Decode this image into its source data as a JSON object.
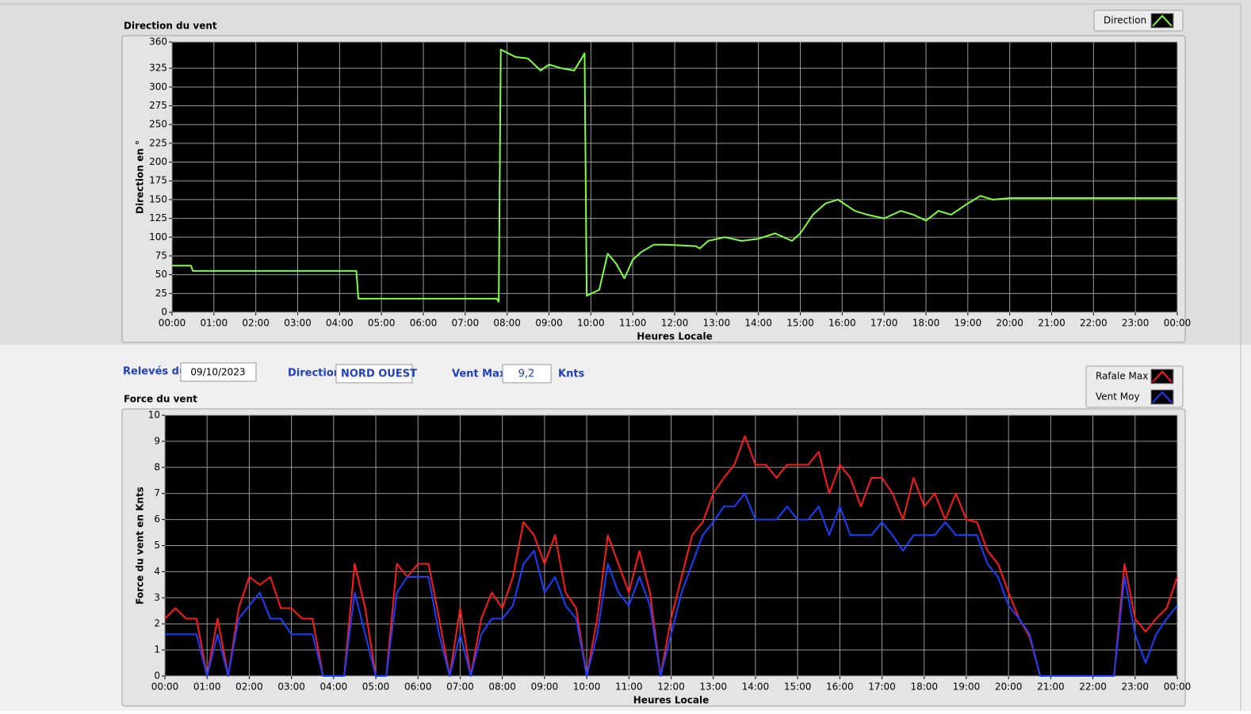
{
  "chart_data": [
    {
      "type": "line",
      "title": "Direction du vent",
      "x_label": "Heures Locale",
      "y_label": "Direction en °",
      "x": [
        0,
        0.45,
        0.5,
        4.4,
        4.45,
        7.75,
        7.8,
        7.85,
        8.2,
        8.5,
        8.8,
        9.0,
        9.3,
        9.6,
        9.8,
        9.85,
        9.9,
        10.2,
        10.4,
        10.6,
        10.8,
        11.0,
        11.2,
        11.5,
        11.8,
        12.5,
        12.6,
        12.8,
        13.2,
        13.6,
        14.0,
        14.4,
        14.8,
        15.0,
        15.3,
        15.6,
        15.9,
        16.3,
        16.6,
        17.0,
        17.4,
        17.7,
        18.0,
        18.3,
        18.6,
        19.0,
        19.3,
        19.6,
        20.0,
        24
      ],
      "series": [
        {
          "name": "Direction",
          "color": "#80ff40",
          "values": [
            62,
            62,
            55,
            55,
            18,
            18,
            14,
            350,
            340,
            338,
            322,
            330,
            325,
            322,
            340,
            345,
            22,
            30,
            78,
            65,
            45,
            70,
            80,
            90,
            90,
            88,
            85,
            95,
            100,
            95,
            98,
            105,
            95,
            105,
            130,
            145,
            150,
            135,
            130,
            125,
            135,
            130,
            122,
            135,
            130,
            145,
            155,
            150,
            152,
            152
          ]
        }
      ],
      "xlim": [
        0,
        24
      ],
      "xticks": [
        {
          "value": 0,
          "label": "00:00"
        },
        {
          "value": 1,
          "label": "01:00"
        },
        {
          "value": 2,
          "label": "02:00"
        },
        {
          "value": 3,
          "label": "03:00"
        },
        {
          "value": 4,
          "label": "04:00"
        },
        {
          "value": 5,
          "label": "05:00"
        },
        {
          "value": 6,
          "label": "06:00"
        },
        {
          "value": 7,
          "label": "07:00"
        },
        {
          "value": 8,
          "label": "08:00"
        },
        {
          "value": 9,
          "label": "09:00"
        },
        {
          "value": 10,
          "label": "10:00"
        },
        {
          "value": 11,
          "label": "11:00"
        },
        {
          "value": 12,
          "label": "12:00"
        },
        {
          "value": 13,
          "label": "13:00"
        },
        {
          "value": 14,
          "label": "14:00"
        },
        {
          "value": 15,
          "label": "15:00"
        },
        {
          "value": 16,
          "label": "16:00"
        },
        {
          "value": 17,
          "label": "17:00"
        },
        {
          "value": 18,
          "label": "18:00"
        },
        {
          "value": 19,
          "label": "19:00"
        },
        {
          "value": 20,
          "label": "20:00"
        },
        {
          "value": 21,
          "label": "21:00"
        },
        {
          "value": 22,
          "label": "22:00"
        },
        {
          "value": 23,
          "label": "23:00"
        },
        {
          "value": 24,
          "label": "00:00"
        }
      ],
      "ylim": [
        0,
        360
      ],
      "yticks": [
        0,
        25,
        50,
        75,
        100,
        125,
        150,
        175,
        200,
        225,
        250,
        275,
        300,
        325,
        360
      ],
      "grid": true
    },
    {
      "type": "line",
      "title": "Force du vent",
      "x_label": "Heures Locale",
      "y_label": "Force du vent en Knts",
      "x": [
        0,
        0.25,
        0.5,
        0.75,
        1,
        1.25,
        1.5,
        1.75,
        2,
        2.25,
        2.5,
        2.75,
        3,
        3.25,
        3.5,
        3.75,
        4,
        4.25,
        4.5,
        4.75,
        5,
        5.25,
        5.5,
        5.75,
        6,
        6.25,
        6.5,
        6.75,
        7,
        7.25,
        7.5,
        7.75,
        8,
        8.25,
        8.5,
        8.75,
        9,
        9.25,
        9.5,
        9.75,
        10,
        10.25,
        10.5,
        10.75,
        11,
        11.25,
        11.5,
        11.75,
        12,
        12.25,
        12.5,
        12.75,
        13,
        13.25,
        13.5,
        13.75,
        14,
        14.25,
        14.5,
        14.75,
        15,
        15.25,
        15.5,
        15.75,
        16,
        16.25,
        16.5,
        16.75,
        17,
        17.25,
        17.5,
        17.75,
        18,
        18.25,
        18.5,
        18.75,
        19,
        19.25,
        19.5,
        19.75,
        20,
        20.25,
        20.5,
        20.75,
        21,
        21.25,
        21.5,
        21.75,
        22,
        22.25,
        22.5,
        22.75,
        23,
        23.25,
        23.5,
        23.75,
        24
      ],
      "series": [
        {
          "name": "Rafale Max",
          "color": "#ff1a1a",
          "values": [
            2.2,
            2.6,
            2.2,
            2.2,
            0,
            2.2,
            0,
            2.6,
            3.8,
            3.5,
            3.8,
            2.6,
            2.6,
            2.2,
            2.2,
            0,
            0,
            0,
            4.3,
            2.6,
            0,
            0,
            4.3,
            3.8,
            4.3,
            4.3,
            2.2,
            0,
            2.6,
            0,
            2.2,
            3.2,
            2.6,
            3.8,
            5.9,
            5.4,
            4.3,
            5.4,
            3.2,
            2.6,
            0,
            2.2,
            5.4,
            4.3,
            3.2,
            4.8,
            3.2,
            0,
            2.2,
            3.8,
            5.4,
            5.9,
            7.0,
            7.6,
            8.1,
            9.2,
            8.1,
            8.1,
            7.6,
            8.1,
            8.1,
            8.1,
            8.6,
            7.0,
            8.1,
            7.6,
            6.5,
            7.6,
            7.6,
            7.0,
            6.0,
            7.6,
            6.5,
            7.0,
            6.0,
            7.0,
            6.0,
            5.9,
            4.8,
            4.3,
            3.2,
            2.2,
            1.5,
            0,
            0,
            0,
            0,
            0,
            0,
            0,
            0,
            4.3,
            2.2,
            1.7,
            2.2,
            2.6,
            3.8
          ]
        },
        {
          "name": "Vent Moy",
          "color": "#1a3fff",
          "values": [
            1.6,
            1.6,
            1.6,
            1.6,
            0,
            1.6,
            0,
            2.2,
            2.7,
            3.2,
            2.2,
            2.2,
            1.6,
            1.6,
            1.6,
            0,
            0,
            0,
            3.2,
            1.6,
            0,
            0,
            3.2,
            3.8,
            3.8,
            3.8,
            1.6,
            0,
            1.6,
            0,
            1.6,
            2.2,
            2.2,
            2.7,
            4.3,
            4.8,
            3.2,
            3.8,
            2.7,
            2.2,
            0,
            1.6,
            4.3,
            3.2,
            2.7,
            3.8,
            2.7,
            0,
            1.6,
            3.2,
            4.3,
            5.4,
            5.9,
            6.5,
            6.5,
            7.0,
            6.0,
            6.0,
            6.0,
            6.5,
            6.0,
            6.0,
            6.5,
            5.4,
            6.5,
            5.4,
            5.4,
            5.4,
            5.9,
            5.4,
            4.8,
            5.4,
            5.4,
            5.4,
            5.9,
            5.4,
            5.4,
            5.4,
            4.3,
            3.8,
            2.7,
            2.2,
            1.6,
            0,
            0,
            0,
            0,
            0,
            0,
            0,
            0,
            3.8,
            1.6,
            0.5,
            1.6,
            2.2,
            2.7
          ]
        }
      ],
      "xlim": [
        0,
        24
      ],
      "xticks": [
        {
          "value": 0,
          "label": "00:00"
        },
        {
          "value": 1,
          "label": "01:00"
        },
        {
          "value": 2,
          "label": "02:00"
        },
        {
          "value": 3,
          "label": "03:00"
        },
        {
          "value": 4,
          "label": "04:00"
        },
        {
          "value": 5,
          "label": "05:00"
        },
        {
          "value": 6,
          "label": "06:00"
        },
        {
          "value": 7,
          "label": "07:00"
        },
        {
          "value": 8,
          "label": "08:00"
        },
        {
          "value": 9,
          "label": "09:00"
        },
        {
          "value": 10,
          "label": "10:00"
        },
        {
          "value": 11,
          "label": "11:00"
        },
        {
          "value": 12,
          "label": "12:00"
        },
        {
          "value": 13,
          "label": "13:00"
        },
        {
          "value": 14,
          "label": "14:00"
        },
        {
          "value": 15,
          "label": "15:00"
        },
        {
          "value": 16,
          "label": "16:00"
        },
        {
          "value": 17,
          "label": "17:00"
        },
        {
          "value": 18,
          "label": "18:00"
        },
        {
          "value": 19,
          "label": "19:00"
        },
        {
          "value": 20,
          "label": "20:00"
        },
        {
          "value": 21,
          "label": "21:00"
        },
        {
          "value": 22,
          "label": "22:00"
        },
        {
          "value": 23,
          "label": "23:00"
        },
        {
          "value": 24,
          "label": "00:00"
        }
      ],
      "ylim": [
        0,
        10
      ],
      "yticks": [
        0,
        1,
        2,
        3,
        4,
        5,
        6,
        7,
        8,
        9,
        10
      ],
      "grid": true
    }
  ],
  "form": {
    "date_label": "Relevés du",
    "date": "09/10/2023",
    "direction_label": "Direction",
    "direction": "NORD OUEST",
    "max_label": "Vent Max",
    "max": "9,2",
    "unit": "Knts"
  }
}
